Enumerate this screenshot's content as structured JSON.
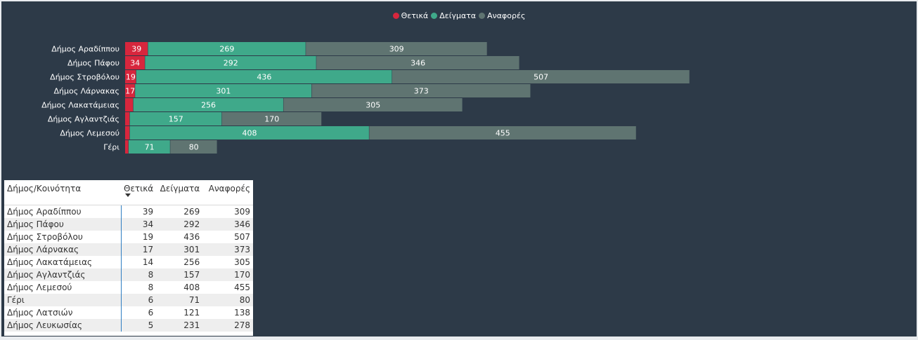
{
  "legend": {
    "items": [
      {
        "label": "Θετικά",
        "color": "#d7263d"
      },
      {
        "label": "Δείγματα",
        "color": "#3fa98a"
      },
      {
        "label": "Αναφορές",
        "color": "#5f7471"
      }
    ]
  },
  "chart_data": {
    "type": "bar",
    "orientation": "horizontal",
    "stacked": true,
    "categories": [
      "Δήμος Αραδίππου",
      "Δήμος Πάφου",
      "Δήμος Στροβόλου",
      "Δήμος Λάρνακας",
      "Δήμος Λακατάμειας",
      "Δήμος Αγλαντζιάς",
      "Δήμος Λεμεσού",
      "Γέρι"
    ],
    "series": [
      {
        "name": "Θετικά",
        "color": "#d7263d",
        "values": [
          39,
          34,
          19,
          17,
          14,
          8,
          8,
          6
        ]
      },
      {
        "name": "Δείγματα",
        "color": "#3fa98a",
        "values": [
          269,
          292,
          436,
          301,
          256,
          157,
          408,
          71
        ]
      },
      {
        "name": "Αναφορές",
        "color": "#5f7471",
        "values": [
          309,
          346,
          507,
          373,
          305,
          170,
          455,
          80
        ]
      }
    ],
    "data_labels": {
      "Θετικά": [
        "39",
        "34",
        "19",
        "17",
        "",
        "",
        "",
        ""
      ],
      "Δείγματα": [
        "269",
        "292",
        "436",
        "301",
        "256",
        "157",
        "408",
        "71"
      ],
      "Αναφορές": [
        "309",
        "346",
        "507",
        "373",
        "305",
        "170",
        "455",
        "80"
      ]
    },
    "legend_position": "top-center",
    "grid": false
  },
  "table": {
    "columns": [
      "Δήμος/Κοινότητα",
      "Θετικά",
      "Δείγματα",
      "Αναφορές"
    ],
    "rows": [
      [
        "Δήμος Αραδίππου",
        "39",
        "269",
        "309"
      ],
      [
        "Δήμος Πάφου",
        "34",
        "292",
        "346"
      ],
      [
        "Δήμος Στροβόλου",
        "19",
        "436",
        "507"
      ],
      [
        "Δήμος Λάρνακας",
        "17",
        "301",
        "373"
      ],
      [
        "Δήμος Λακατάμειας",
        "14",
        "256",
        "305"
      ],
      [
        "Δήμος Αγλαντζιάς",
        "8",
        "157",
        "170"
      ],
      [
        "Δήμος Λεμεσού",
        "8",
        "408",
        "455"
      ],
      [
        "Γέρι",
        "6",
        "71",
        "80"
      ],
      [
        "Δήμος Λατσιών",
        "6",
        "121",
        "138"
      ],
      [
        "Δήμος Λευκωσίας",
        "5",
        "231",
        "278"
      ]
    ]
  }
}
